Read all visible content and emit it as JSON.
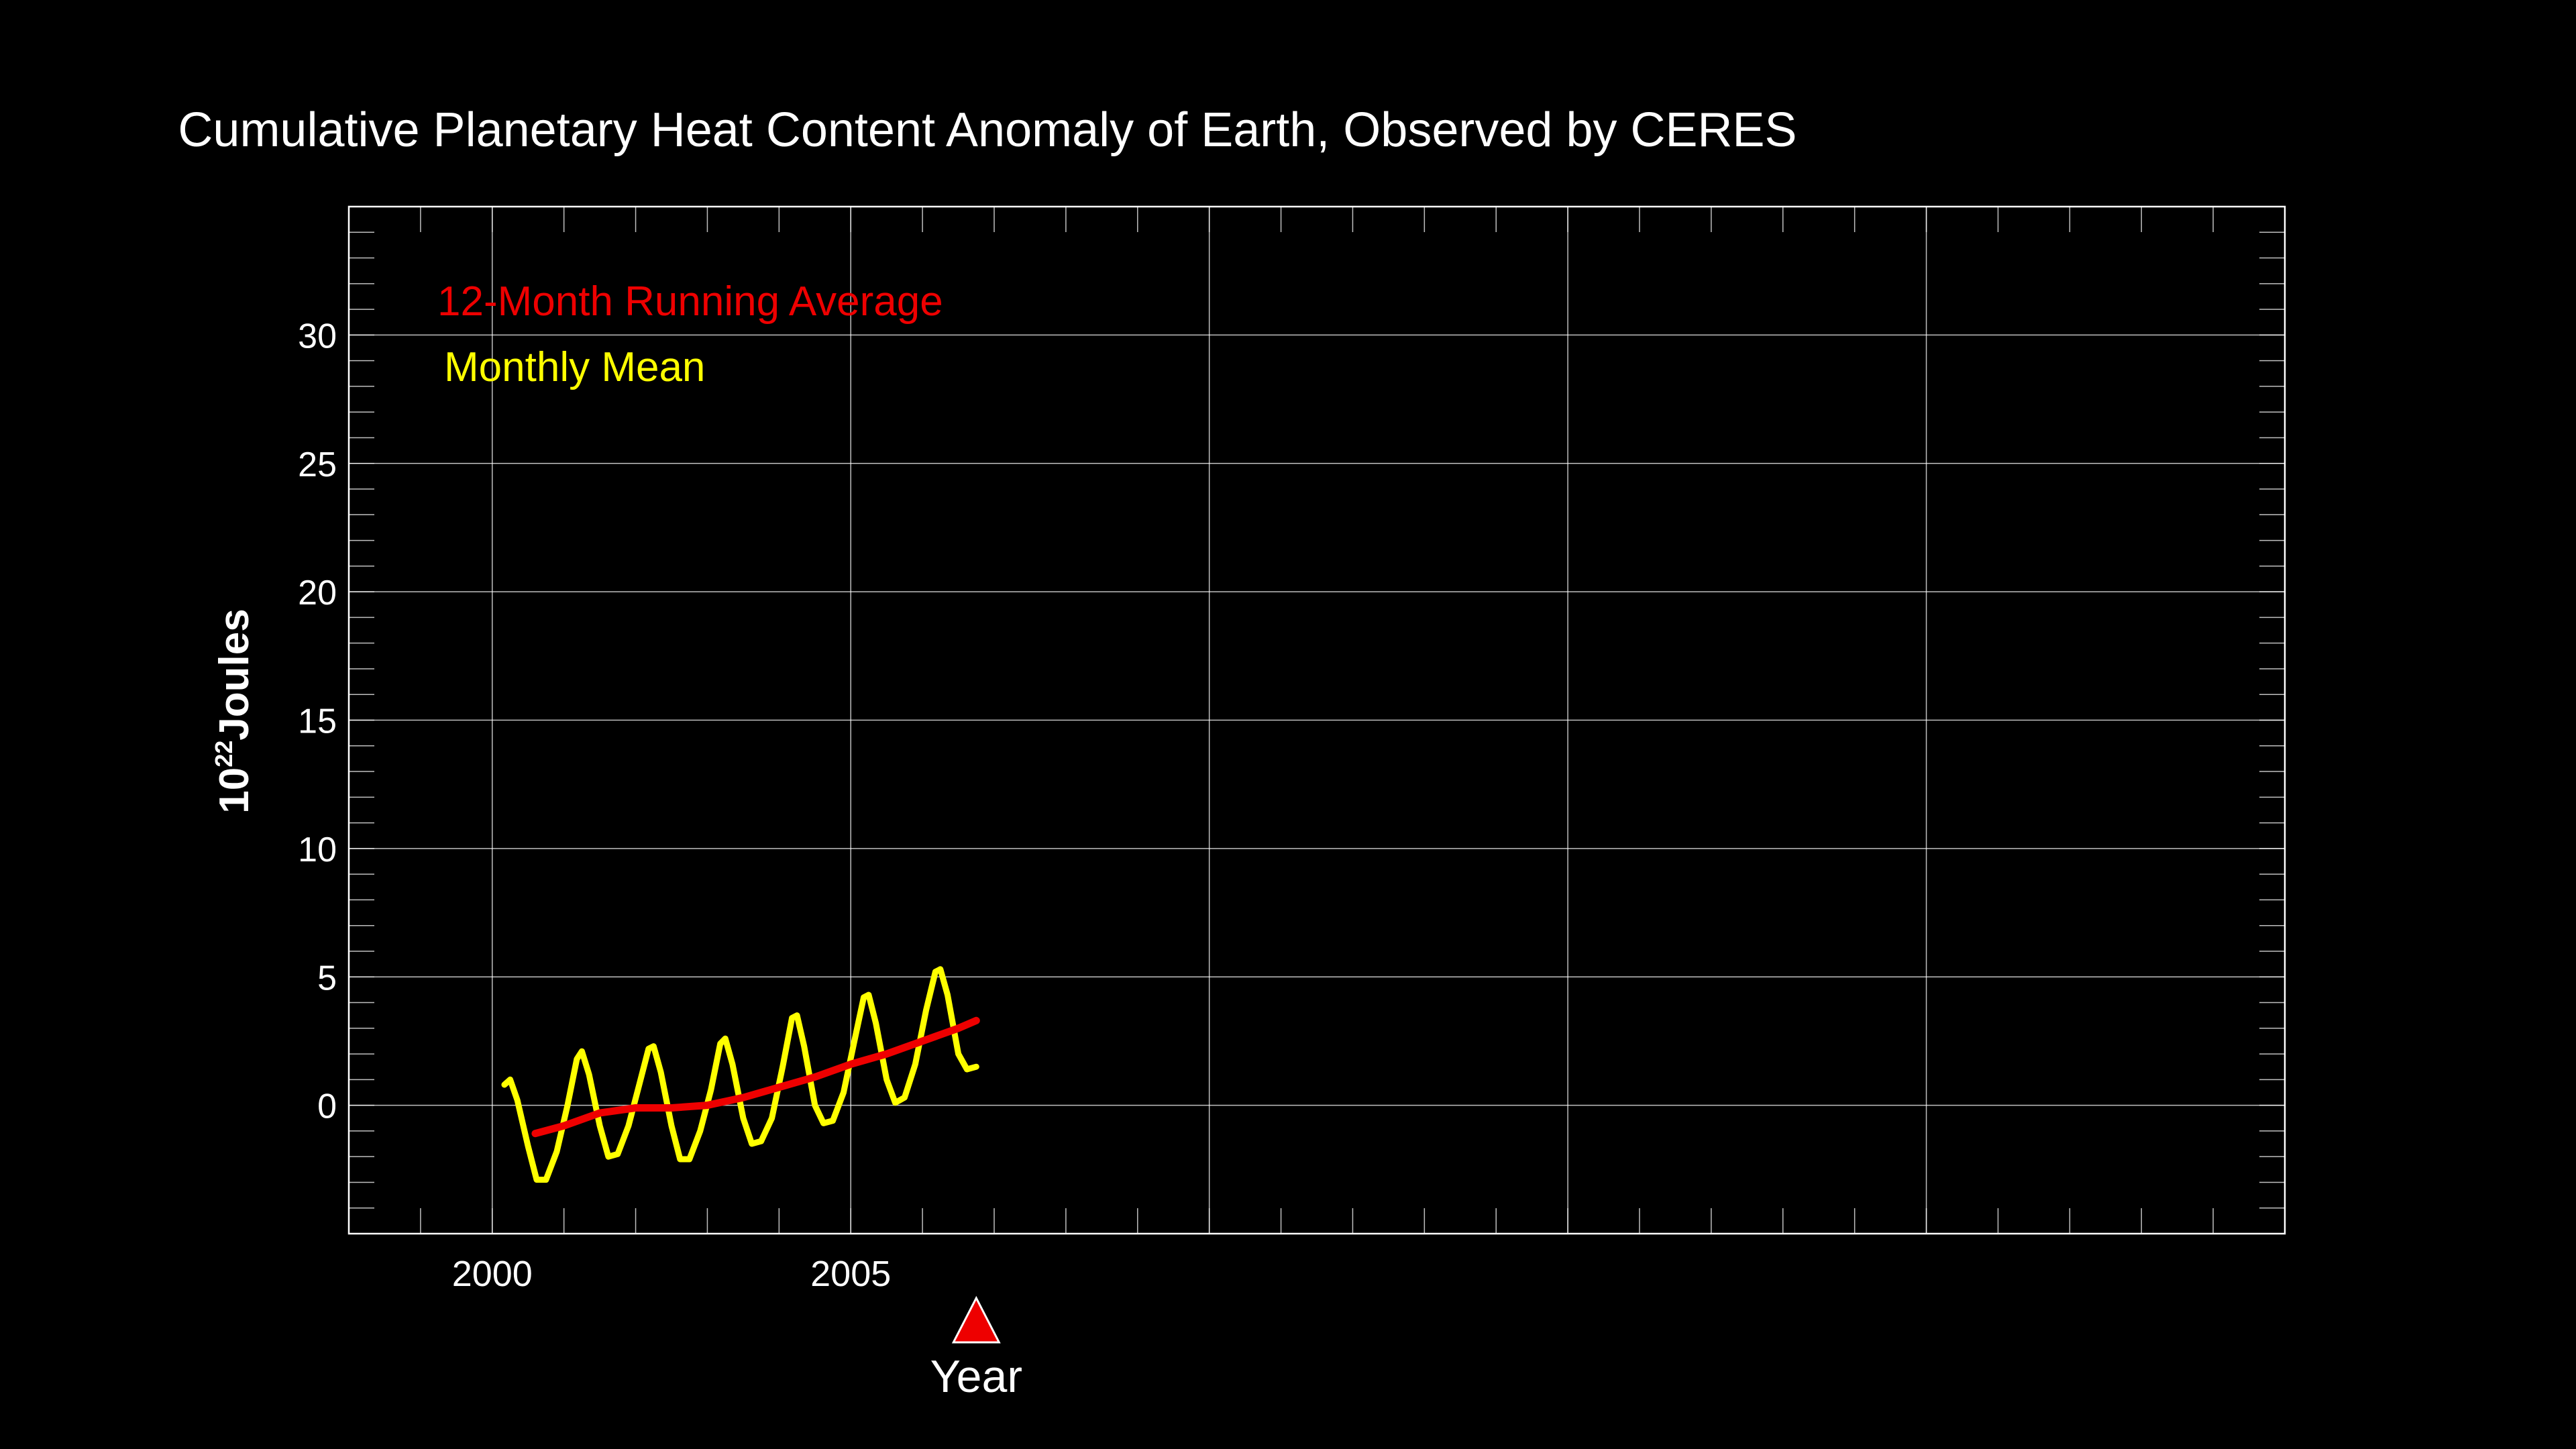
{
  "chart_data": {
    "type": "line",
    "title": "Cumulative Planetary Heat Content Anomaly of Earth, Observed by CERES",
    "xlabel": "Year",
    "ylabel_base": "10",
    "ylabel_exp": "22",
    "ylabel_unit": "Joules",
    "xlim": [
      1998,
      2025
    ],
    "ylim": [
      -5,
      35
    ],
    "x_ticks": [
      2000,
      2005
    ],
    "y_ticks": [
      0,
      5,
      10,
      15,
      20,
      25,
      30
    ],
    "grid": true,
    "legend_position": "top-left",
    "current_year_marker": 2006.75,
    "colors": {
      "background": "#000000",
      "axis": "#ffffff",
      "grid": "#ffffff",
      "running_average": "#ee0000",
      "monthly_mean": "#ffff00"
    },
    "series": [
      {
        "name": "12-Month Running Average",
        "color": "#ee0000",
        "x": [
          2000.6,
          2001.0,
          2001.5,
          2002.0,
          2002.5,
          2003.0,
          2003.5,
          2004.0,
          2004.5,
          2005.0,
          2005.5,
          2006.0,
          2006.5,
          2006.75
        ],
        "y": [
          -1.1,
          -0.8,
          -0.3,
          -0.1,
          -0.1,
          0.0,
          0.3,
          0.7,
          1.1,
          1.6,
          2.0,
          2.5,
          3.0,
          3.3
        ]
      },
      {
        "name": "Monthly Mean",
        "color": "#ffff00",
        "x": [
          2000.17,
          2000.25,
          2000.35,
          2000.5,
          2000.62,
          2000.75,
          2000.9,
          2001.05,
          2001.18,
          2001.25,
          2001.35,
          2001.5,
          2001.62,
          2001.75,
          2001.9,
          2002.05,
          2002.18,
          2002.25,
          2002.35,
          2002.5,
          2002.62,
          2002.75,
          2002.9,
          2003.05,
          2003.18,
          2003.25,
          2003.35,
          2003.5,
          2003.62,
          2003.75,
          2003.9,
          2004.05,
          2004.18,
          2004.25,
          2004.35,
          2004.5,
          2004.62,
          2004.75,
          2004.9,
          2005.05,
          2005.18,
          2005.25,
          2005.35,
          2005.5,
          2005.62,
          2005.75,
          2005.9,
          2006.05,
          2006.18,
          2006.25,
          2006.35,
          2006.5,
          2006.62,
          2006.75
        ],
        "y": [
          0.8,
          1.0,
          0.2,
          -1.6,
          -2.9,
          -2.9,
          -1.8,
          0.0,
          1.8,
          2.1,
          1.2,
          -0.8,
          -2.0,
          -1.9,
          -0.8,
          0.8,
          2.2,
          2.3,
          1.3,
          -0.8,
          -2.1,
          -2.1,
          -1.0,
          0.6,
          2.4,
          2.6,
          1.6,
          -0.5,
          -1.5,
          -1.4,
          -0.5,
          1.5,
          3.4,
          3.5,
          2.3,
          0.0,
          -0.7,
          -0.6,
          0.5,
          2.5,
          4.2,
          4.3,
          3.2,
          1.0,
          0.1,
          0.3,
          1.6,
          3.7,
          5.2,
          5.3,
          4.3,
          2.0,
          1.4,
          1.5
        ]
      }
    ]
  }
}
